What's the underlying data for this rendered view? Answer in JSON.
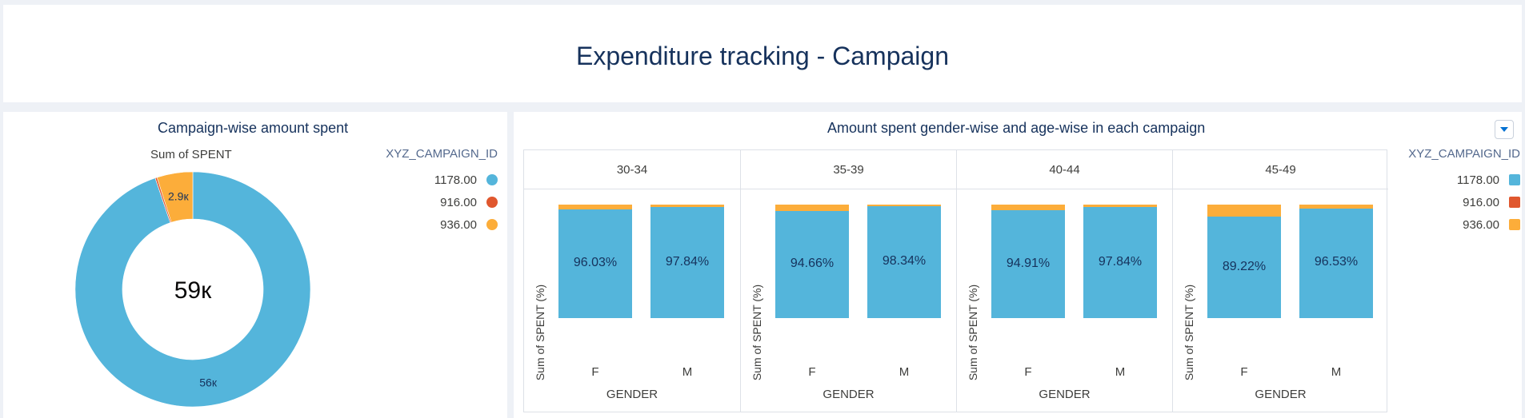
{
  "page": {
    "title": "Expenditure tracking - Campaign"
  },
  "colors": {
    "c1178": "#54b5db",
    "c916": "#e0572e",
    "c936": "#fcad3a"
  },
  "legend": {
    "title": "XYZ_CAMPAIGN_ID",
    "items": [
      {
        "label": "1178.00",
        "color": "#54b5db"
      },
      {
        "label": "916.00",
        "color": "#e0572e"
      },
      {
        "label": "936.00",
        "color": "#fcad3a"
      }
    ]
  },
  "chart_data": [
    {
      "type": "pie",
      "title": "Campaign-wise amount spent",
      "subtitle": "Sum of SPENT",
      "center_label": "59к",
      "slices": [
        {
          "name": "1178.00",
          "value": 55.8,
          "label": "56к",
          "color": "#54b5db"
        },
        {
          "name": "916.00",
          "value": 0.15,
          "label": "",
          "color": "#e0572e"
        },
        {
          "name": "936.00",
          "value": 2.9,
          "label": "2.9к",
          "color": "#fcad3a"
        }
      ]
    },
    {
      "type": "bar",
      "stacked": "percent",
      "title": "Amount spent gender-wise and age-wise in each campaign",
      "ylabel": "Sum of SPENT (%)",
      "xlabel": "GENDER",
      "ylim": [
        0,
        100
      ],
      "facets": [
        {
          "label": "30-34",
          "categories": [
            "F",
            "M"
          ],
          "values_1178": [
            96.03,
            97.84
          ],
          "labels": [
            "96.03%",
            "97.84%"
          ]
        },
        {
          "label": "35-39",
          "categories": [
            "F",
            "M"
          ],
          "values_1178": [
            94.66,
            98.34
          ],
          "labels": [
            "94.66%",
            "98.34%"
          ]
        },
        {
          "label": "40-44",
          "categories": [
            "F",
            "M"
          ],
          "values_1178": [
            94.91,
            97.84
          ],
          "labels": [
            "94.91%",
            "97.84%"
          ]
        },
        {
          "label": "45-49",
          "categories": [
            "F",
            "M"
          ],
          "values_1178": [
            89.22,
            96.53
          ],
          "labels": [
            "89.22%",
            "96.53%"
          ]
        }
      ]
    }
  ]
}
